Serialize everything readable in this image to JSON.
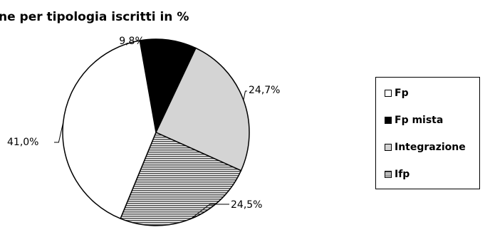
{
  "chart_data": {
    "type": "pie",
    "title": "ne per tipologia iscritti in %",
    "slices": [
      {
        "name": "Fp mista",
        "value": 9.8,
        "label": "9,8%",
        "color": "#000000"
      },
      {
        "name": "Integrazione",
        "value": 24.7,
        "label": "24,7%",
        "color": "#d4d4d4"
      },
      {
        "name": "Ifp",
        "value": 24.5,
        "label": "24,5%",
        "color": "#8c8c8c",
        "pattern": "horizontal-stripes"
      },
      {
        "name": "Fp",
        "value": 41.0,
        "label": "41,0%",
        "color": "#ffffff"
      }
    ],
    "legend": {
      "placement": "right",
      "items": [
        {
          "label": "Fp",
          "color": "#ffffff"
        },
        {
          "label": "Fp mista",
          "color": "#000000"
        },
        {
          "label": "Integrazione",
          "color": "#d4d4d4"
        },
        {
          "label": "Ifp",
          "color": "#8c8c8c",
          "pattern": "horizontal-stripes"
        }
      ]
    }
  }
}
